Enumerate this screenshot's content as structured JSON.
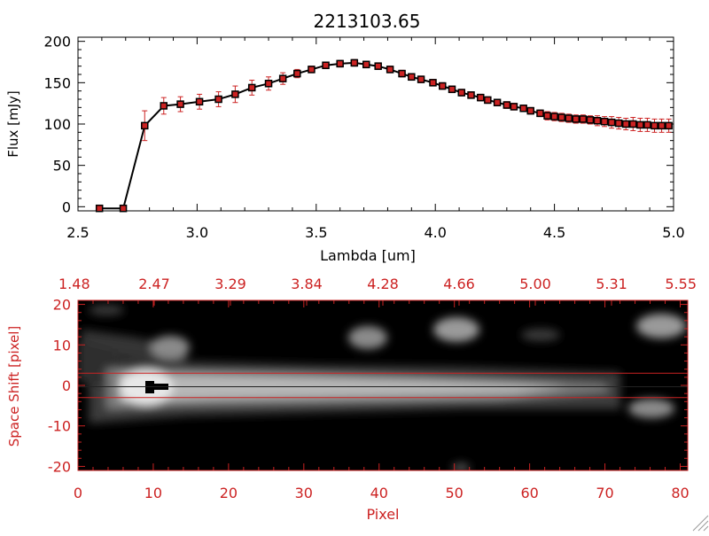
{
  "colors": {
    "accent": "#cc2222",
    "axis": "#000000",
    "line": "#000000",
    "marker_fill": "#cc2222",
    "background": "#ffffff",
    "image_bg": "#000000"
  },
  "chart_data": [
    {
      "type": "line",
      "title": "2213103.65",
      "xlabel": "Lambda [um]",
      "ylabel": "Flux [mJy]",
      "xlim": [
        2.5,
        5.0
      ],
      "ylim": [
        -5,
        205
      ],
      "xticks": [
        "2.5",
        "3.0",
        "3.5",
        "4.0",
        "4.5",
        "5.0"
      ],
      "yticks": [
        "0",
        "50",
        "100",
        "150",
        "200"
      ],
      "grid": false,
      "series": [
        {
          "x": [
            2.59,
            2.69,
            2.78,
            2.86,
            2.93,
            3.01,
            3.09,
            3.16,
            3.23,
            3.3,
            3.36,
            3.42,
            3.48,
            3.54,
            3.6,
            3.66,
            3.71,
            3.76,
            3.81,
            3.86,
            3.9,
            3.94,
            3.99,
            4.03,
            4.07,
            4.11,
            4.15,
            4.19,
            4.22,
            4.26,
            4.3,
            4.33,
            4.37,
            4.4,
            4.44,
            4.47,
            4.5,
            4.53,
            4.56,
            4.59,
            4.62,
            4.65,
            4.68,
            4.71,
            4.74,
            4.77,
            4.8,
            4.83,
            4.86,
            4.89,
            4.92,
            4.95,
            4.98
          ],
          "y": [
            -2,
            -2,
            98,
            122,
            124,
            127,
            130,
            136,
            144,
            149,
            155,
            161,
            166,
            171,
            173,
            174,
            172,
            170,
            166,
            161,
            157,
            154,
            150,
            146,
            142,
            138,
            135,
            132,
            129,
            126,
            123,
            121,
            119,
            116,
            113,
            110,
            109,
            108,
            107,
            106,
            106,
            105,
            104,
            103,
            102,
            101,
            100,
            100,
            99,
            99,
            98,
            98,
            98
          ],
          "err": [
            3,
            3,
            18,
            10,
            9,
            9,
            9,
            10,
            9,
            8,
            7,
            5,
            4,
            4,
            4,
            4,
            4,
            4,
            4,
            4,
            4,
            4,
            4,
            4,
            4,
            4,
            4,
            4,
            4,
            4,
            4,
            4,
            4,
            4,
            4,
            5,
            5,
            5,
            5,
            5,
            5,
            5,
            6,
            6,
            7,
            7,
            7,
            8,
            8,
            8,
            8,
            8,
            8
          ]
        }
      ]
    },
    {
      "type": "heatmap",
      "xlabel": "Pixel",
      "ylabel": "Space Shift [pixel]",
      "xlim": [
        0,
        81
      ],
      "ylim": [
        -21,
        21
      ],
      "xticks": [
        "0",
        "10",
        "20",
        "30",
        "40",
        "50",
        "60",
        "70",
        "80"
      ],
      "yticks": [
        "-20",
        "-10",
        "0",
        "10",
        "20"
      ],
      "top_axis_ticks": [
        "1.48",
        "2.47",
        "3.29",
        "3.84",
        "4.28",
        "4.66",
        "5.00",
        "5.31",
        "5.55"
      ],
      "reference_lines_y": [
        3,
        -3
      ]
    }
  ]
}
